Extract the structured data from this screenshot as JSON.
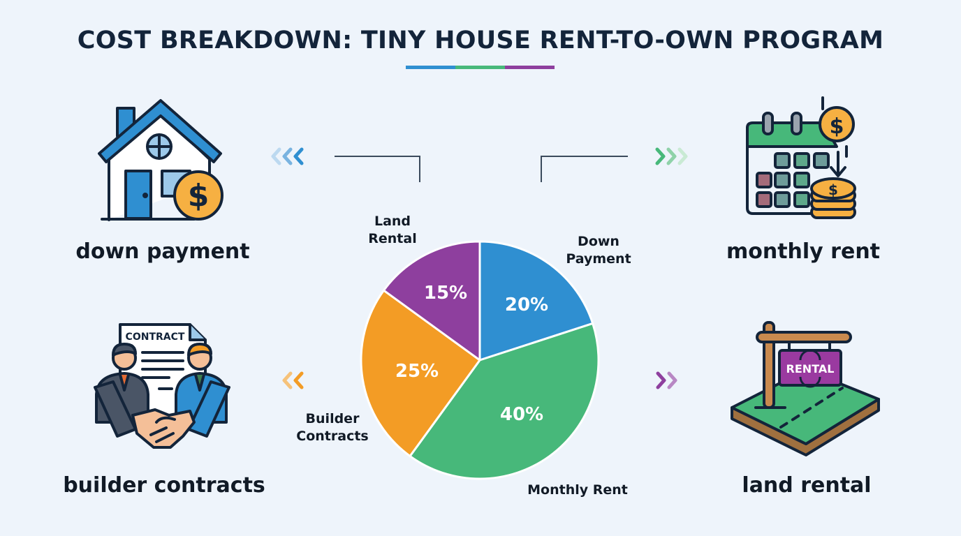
{
  "title": "COST BREAKDOWN: TINY HOUSE RENT-TO-OWN PROGRAM",
  "title_bar_colors": [
    "#2f8fd1",
    "#47b87a",
    "#8e3f9e"
  ],
  "categories": {
    "down_payment": {
      "label": "down payment",
      "icon": "house-with-dollar-icon"
    },
    "monthly_rent": {
      "label": "monthly rent",
      "icon": "calendar-coins-icon"
    },
    "builder_contracts": {
      "label": "builder contracts",
      "icon": "contract-handshake-icon"
    },
    "land_rental": {
      "label": "land rental",
      "icon": "rental-sign-land-icon"
    }
  },
  "icon_text": {
    "contract": "CONTRACT",
    "rental": "RENTAL",
    "dollar": "$"
  },
  "slice_labels": {
    "land_rental_line1": "Land",
    "land_rental_line2": "Rental",
    "down_payment_line1": "Down",
    "down_payment_line2": "Payment",
    "builder_contracts_line1": "Builder",
    "builder_contracts_line2": "Contracts",
    "monthly_rent": "Monthly Rent"
  },
  "percent_labels": {
    "down_payment": "20%",
    "monthly_rent": "40%",
    "builder_contracts": "25%",
    "land_rental": "15%"
  },
  "chart_data": {
    "type": "pie",
    "title": "COST BREAKDOWN: TINY HOUSE RENT-TO-OWN PROGRAM",
    "categories": [
      "Down Payment",
      "Monthly Rent",
      "Builder Contracts",
      "Land Rental"
    ],
    "values": [
      20,
      40,
      25,
      15
    ],
    "unit": "%",
    "colors": [
      "#2f8fd1",
      "#47b87a",
      "#f39c25",
      "#8e3f9e"
    ],
    "start_angle": "12 o'clock",
    "direction": "clockwise",
    "data_labels": [
      "20%",
      "40%",
      "25%",
      "15%"
    ],
    "legend": "none (labels placed beside slices)"
  }
}
